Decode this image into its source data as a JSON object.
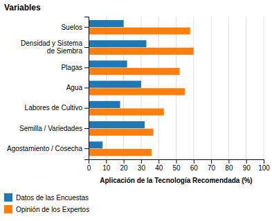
{
  "chart_data": {
    "type": "bar",
    "orientation": "horizontal",
    "title": "Variables",
    "xlabel": "Aplicación de la Tecnología Recomendada (%)",
    "categories": [
      "Suelos",
      "Densidad y Sistema\nde Siembra",
      "Plagas",
      "Agua",
      "Labores de Cultivo",
      "Semilla / Variedades",
      "Agostamiento / Cosecha"
    ],
    "series": [
      {
        "name": "Datos de las Encuestas",
        "values": [
          20,
          33,
          22,
          30,
          18,
          32,
          8
        ]
      },
      {
        "name": "Opinión de los Expertos",
        "values": [
          58,
          60,
          52,
          55,
          43,
          37,
          36
        ]
      }
    ],
    "xlim": [
      0,
      100
    ],
    "xticks": [
      0,
      10,
      20,
      30,
      40,
      50,
      60,
      70,
      80,
      90,
      100
    ],
    "grid": true,
    "legend": "bottom-left"
  }
}
